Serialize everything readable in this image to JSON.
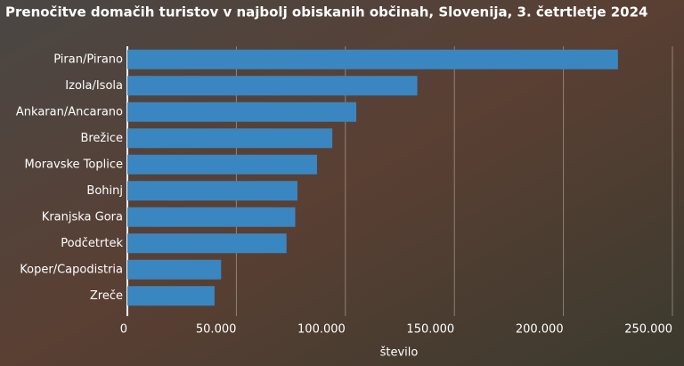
{
  "chart_data": {
    "type": "barh",
    "title": "Prenočitve domačih turistov v najbolj obiskanih občinah, Slovenija, 3. četrtletje 2024",
    "categories": [
      "Piran/Pirano",
      "Izola/Isola",
      "Ankaran/Ancarano",
      "Brežice",
      "Moravske Toplice",
      "Bohinj",
      "Kranjska Gora",
      "Podčetrtek",
      "Koper/Capodistria",
      "Zreče"
    ],
    "values": [
      225000,
      133000,
      105000,
      94000,
      87000,
      78000,
      77000,
      73000,
      43000,
      40000
    ],
    "color": "#3a86c0",
    "xlabel": "število",
    "xlim": [
      0,
      250000
    ],
    "xticks": [
      0,
      {
        "value": 50000,
        "label": "50.000"
      },
      {
        "value": 100000,
        "label": "100.000"
      },
      {
        "value": 150000,
        "label": "150.000"
      },
      {
        "value": 200000,
        "label": "200.000"
      },
      {
        "value": 250000,
        "label": "250.000"
      }
    ],
    "grid": true
  }
}
